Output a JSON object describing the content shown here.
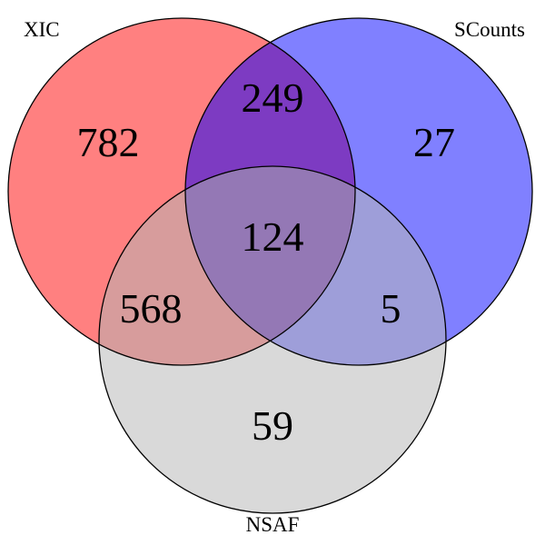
{
  "diagram": {
    "type": "venn3",
    "sets": [
      {
        "id": "xic",
        "label": "XIC",
        "fill": "#ff8080"
      },
      {
        "id": "scounts",
        "label": "SCounts",
        "fill": "#8080ff"
      },
      {
        "id": "nsaf",
        "label": "NSAF",
        "fill": "#d9d9d9"
      }
    ],
    "overlap_colors": {
      "xic_scounts": "#7d3bc2",
      "xic_nsaf": "#d79c9c",
      "scounts_nsaf": "#9e9ed9",
      "all": "#9478b5"
    },
    "stroke": "#000000",
    "regions": {
      "xic_only": "782",
      "scounts_only": "27",
      "nsaf_only": "59",
      "xic_scounts": "249",
      "xic_nsaf": "568",
      "scounts_nsaf": "5",
      "all": "124"
    }
  }
}
